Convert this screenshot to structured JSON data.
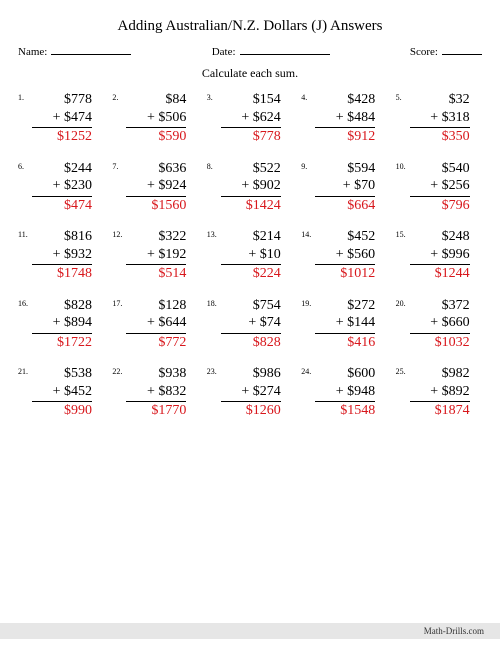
{
  "title": "Adding Australian/N.Z. Dollars (J) Answers",
  "meta": {
    "name_label": "Name:",
    "date_label": "Date:",
    "score_label": "Score:",
    "name_line_width": 80,
    "date_line_width": 90,
    "score_line_width": 40
  },
  "instruction": "Calculate each sum.",
  "currency": "$",
  "plus": "+",
  "styling": {
    "answer_color": "#d8171c",
    "body_font_size": 14,
    "number_font_size": 8,
    "title_font_size": 15,
    "meta_font_size": 11,
    "instr_font_size": 12,
    "rule_color": "#000000",
    "background": "#ffffff",
    "footer_bg": "#e6e6e6",
    "columns": 5,
    "rows": 5
  },
  "problems": [
    {
      "n": "1.",
      "a": 778,
      "b": 474,
      "s": 1252
    },
    {
      "n": "2.",
      "a": 84,
      "b": 506,
      "s": 590
    },
    {
      "n": "3.",
      "a": 154,
      "b": 624,
      "s": 778
    },
    {
      "n": "4.",
      "a": 428,
      "b": 484,
      "s": 912
    },
    {
      "n": "5.",
      "a": 32,
      "b": 318,
      "s": 350
    },
    {
      "n": "6.",
      "a": 244,
      "b": 230,
      "s": 474
    },
    {
      "n": "7.",
      "a": 636,
      "b": 924,
      "s": 1560
    },
    {
      "n": "8.",
      "a": 522,
      "b": 902,
      "s": 1424
    },
    {
      "n": "9.",
      "a": 594,
      "b": 70,
      "s": 664
    },
    {
      "n": "10.",
      "a": 540,
      "b": 256,
      "s": 796
    },
    {
      "n": "11.",
      "a": 816,
      "b": 932,
      "s": 1748
    },
    {
      "n": "12.",
      "a": 322,
      "b": 192,
      "s": 514
    },
    {
      "n": "13.",
      "a": 214,
      "b": 10,
      "s": 224
    },
    {
      "n": "14.",
      "a": 452,
      "b": 560,
      "s": 1012
    },
    {
      "n": "15.",
      "a": 248,
      "b": 996,
      "s": 1244
    },
    {
      "n": "16.",
      "a": 828,
      "b": 894,
      "s": 1722
    },
    {
      "n": "17.",
      "a": 128,
      "b": 644,
      "s": 772
    },
    {
      "n": "18.",
      "a": 754,
      "b": 74,
      "s": 828
    },
    {
      "n": "19.",
      "a": 272,
      "b": 144,
      "s": 416
    },
    {
      "n": "20.",
      "a": 372,
      "b": 660,
      "s": 1032
    },
    {
      "n": "21.",
      "a": 538,
      "b": 452,
      "s": 990
    },
    {
      "n": "22.",
      "a": 938,
      "b": 832,
      "s": 1770
    },
    {
      "n": "23.",
      "a": 986,
      "b": 274,
      "s": 1260
    },
    {
      "n": "24.",
      "a": 600,
      "b": 948,
      "s": 1548
    },
    {
      "n": "25.",
      "a": 982,
      "b": 892,
      "s": 1874
    }
  ],
  "footer": "Math-Drills.com"
}
